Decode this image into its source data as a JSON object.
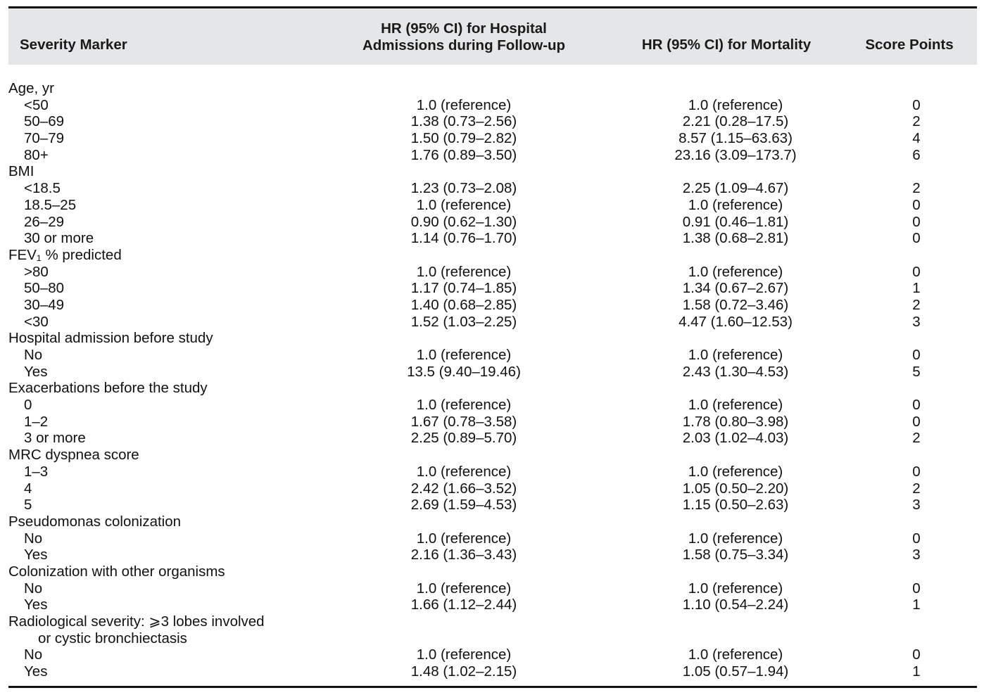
{
  "header": {
    "severity_marker": "Severity Marker",
    "hr_admissions_line1": "HR (95% CI) for Hospital",
    "hr_admissions_line2": "Admissions during Follow-up",
    "hr_mortality": "HR (95% CI) for Mortality",
    "score_points": "Score Points"
  },
  "rows": [
    {
      "type": "category",
      "label": "Age, yr",
      "adm": "",
      "mort": "",
      "score": ""
    },
    {
      "type": "sub",
      "label": "<50",
      "adm": "1.0 (reference)",
      "mort": "1.0 (reference)",
      "score": "0"
    },
    {
      "type": "sub",
      "label": "50–69",
      "adm": "1.38 (0.73–2.56)",
      "mort": "2.21 (0.28–17.5)",
      "score": "2"
    },
    {
      "type": "sub",
      "label": "70–79",
      "adm": "1.50 (0.79–2.82)",
      "mort": "8.57 (1.15–63.63)",
      "score": "4"
    },
    {
      "type": "sub",
      "label": "80+",
      "adm": "1.76 (0.89–3.50)",
      "mort": "23.16 (3.09–173.7)",
      "score": "6"
    },
    {
      "type": "category",
      "label": "BMI",
      "adm": "",
      "mort": "",
      "score": ""
    },
    {
      "type": "sub",
      "label": "<18.5",
      "adm": "1.23 (0.73–2.08)",
      "mort": "2.25 (1.09–4.67)",
      "score": "2"
    },
    {
      "type": "sub",
      "label": "18.5–25",
      "adm": "1.0 (reference)",
      "mort": "1.0 (reference)",
      "score": "0"
    },
    {
      "type": "sub",
      "label": "26–29",
      "adm": "0.90 (0.62–1.30)",
      "mort": "0.91 (0.46–1.81)",
      "score": "0"
    },
    {
      "type": "sub",
      "label": "30 or more",
      "adm": "1.14 (0.76–1.70)",
      "mort": "1.38 (0.68–2.81)",
      "score": "0"
    },
    {
      "type": "category",
      "label": "FEV₁ % predicted",
      "adm": "",
      "mort": "",
      "score": ""
    },
    {
      "type": "sub",
      "label": ">80",
      "adm": "1.0 (reference)",
      "mort": "1.0 (reference)",
      "score": "0"
    },
    {
      "type": "sub",
      "label": "50–80",
      "adm": "1.17 (0.74–1.85)",
      "mort": "1.34 (0.67–2.67)",
      "score": "1"
    },
    {
      "type": "sub",
      "label": "30–49",
      "adm": "1.40 (0.68–2.85)",
      "mort": "1.58 (0.72–3.46)",
      "score": "2"
    },
    {
      "type": "sub",
      "label": "<30",
      "adm": "1.52 (1.03–2.25)",
      "mort": "4.47 (1.60–12.53)",
      "score": "3"
    },
    {
      "type": "category",
      "label": "Hospital admission before study",
      "adm": "",
      "mort": "",
      "score": ""
    },
    {
      "type": "sub",
      "label": "No",
      "adm": "1.0 (reference)",
      "mort": "1.0 (reference)",
      "score": "0"
    },
    {
      "type": "sub",
      "label": "Yes",
      "adm": "13.5 (9.40–19.46)",
      "mort": "2.43 (1.30–4.53)",
      "score": "5"
    },
    {
      "type": "category",
      "label": "Exacerbations before the study",
      "adm": "",
      "mort": "",
      "score": ""
    },
    {
      "type": "sub",
      "label": "0",
      "adm": "1.0 (reference)",
      "mort": "1.0 (reference)",
      "score": "0"
    },
    {
      "type": "sub",
      "label": "1–2",
      "adm": "1.67 (0.78–3.58)",
      "mort": "1.78 (0.80–3.98)",
      "score": "0"
    },
    {
      "type": "sub",
      "label": "3 or more",
      "adm": "2.25 (0.89–5.70)",
      "mort": "2.03 (1.02–4.03)",
      "score": "2"
    },
    {
      "type": "category",
      "label": "MRC dyspnea score",
      "adm": "",
      "mort": "",
      "score": ""
    },
    {
      "type": "sub",
      "label": "1–3",
      "adm": "1.0 (reference)",
      "mort": "1.0 (reference)",
      "score": "0"
    },
    {
      "type": "sub",
      "label": "4",
      "adm": "2.42 (1.66–3.52)",
      "mort": "1.05 (0.50–2.20)",
      "score": "2"
    },
    {
      "type": "sub",
      "label": "5",
      "adm": "2.69 (1.59–4.53)",
      "mort": "1.15 (0.50–2.63)",
      "score": "3"
    },
    {
      "type": "category",
      "label": "Pseudomonas colonization",
      "adm": "",
      "mort": "",
      "score": ""
    },
    {
      "type": "sub",
      "label": "No",
      "adm": "1.0 (reference)",
      "mort": "1.0 (reference)",
      "score": "0"
    },
    {
      "type": "sub",
      "label": "Yes",
      "adm": "2.16 (1.36–3.43)",
      "mort": "1.58 (0.75–3.34)",
      "score": "3"
    },
    {
      "type": "category",
      "label": "Colonization with other organisms",
      "adm": "",
      "mort": "",
      "score": ""
    },
    {
      "type": "sub",
      "label": "No",
      "adm": "1.0 (reference)",
      "mort": "1.0 (reference)",
      "score": "0"
    },
    {
      "type": "sub",
      "label": "Yes",
      "adm": "1.66 (1.12–2.44)",
      "mort": "1.10 (0.54–2.24)",
      "score": "1"
    },
    {
      "type": "category",
      "label": "Radiological severity: ⩾3 lobes involved",
      "adm": "",
      "mort": "",
      "score": ""
    },
    {
      "type": "cont",
      "label": "or cystic bronchiectasis",
      "adm": "",
      "mort": "",
      "score": ""
    },
    {
      "type": "sub",
      "label": "No",
      "adm": "1.0 (reference)",
      "mort": "1.0 (reference)",
      "score": "0"
    },
    {
      "type": "sub",
      "label": "Yes",
      "adm": "1.48 (1.02–2.15)",
      "mort": "1.05 (0.57–1.94)",
      "score": "1"
    }
  ]
}
